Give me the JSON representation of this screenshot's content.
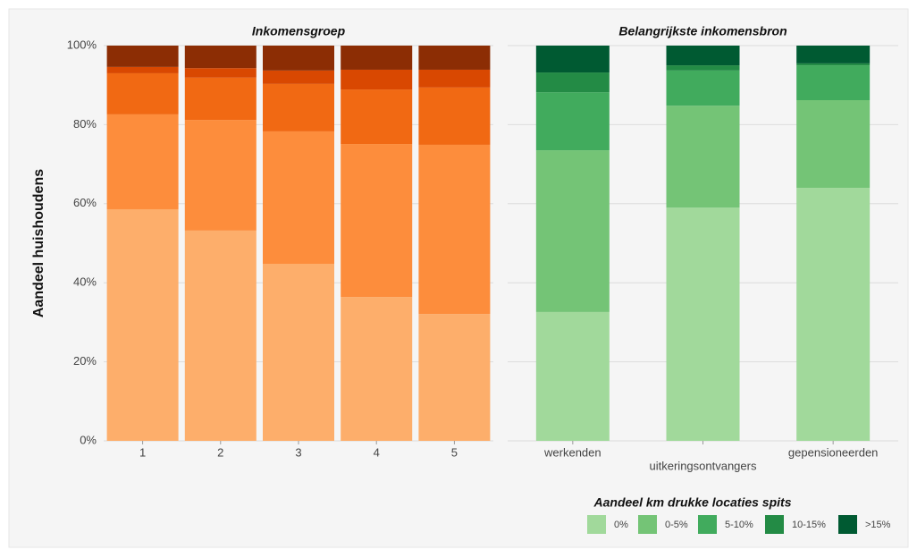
{
  "chart_data": [
    {
      "type": "stacked_bar",
      "title": "Inkomensgroep",
      "y_label": "Aandeel huishoudens",
      "categories": [
        "1",
        "2",
        "3",
        "4",
        "5"
      ],
      "series": [
        {
          "color": "#fdae6b",
          "values": [
            58.6,
            53.2,
            44.8,
            36.4,
            32.1
          ]
        },
        {
          "color": "#fd8d3c",
          "values": [
            24.0,
            28.0,
            33.5,
            38.7,
            42.8
          ]
        },
        {
          "color": "#f16913",
          "values": [
            10.4,
            10.7,
            12.0,
            13.8,
            14.5
          ]
        },
        {
          "color": "#d94801",
          "values": [
            1.6,
            2.4,
            3.4,
            5.0,
            4.5
          ]
        },
        {
          "color": "#8c2d04",
          "values": [
            5.4,
            5.7,
            6.3,
            6.1,
            6.1
          ]
        }
      ],
      "ylim": [
        0,
        100
      ],
      "yticks": [
        {
          "value": 0,
          "label": "0%"
        },
        {
          "value": 20,
          "label": "20%"
        },
        {
          "value": 40,
          "label": "40%"
        },
        {
          "value": 60,
          "label": "60%"
        },
        {
          "value": 80,
          "label": "80%"
        },
        {
          "value": 100,
          "label": "100%"
        }
      ],
      "grid": true
    },
    {
      "type": "stacked_bar",
      "title": "Belangrijkste inkomensbron",
      "legend_title": "Aandeel km drukke locaties spits",
      "categories": [
        "werkenden",
        "uitkeringsontvangers",
        "gepensioneerden"
      ],
      "series": [
        {
          "name": "0%",
          "color": "#a1d99b",
          "values": [
            32.6,
            59.0,
            64.0
          ]
        },
        {
          "name": "0-5%",
          "color": "#74c476",
          "values": [
            40.9,
            25.8,
            22.2
          ]
        },
        {
          "name": "5-10%",
          "color": "#41ab5d",
          "values": [
            14.7,
            8.9,
            8.8
          ]
        },
        {
          "name": "10-15%",
          "color": "#238b45",
          "values": [
            5.0,
            1.3,
            0.5
          ]
        },
        {
          "name": ">15%",
          "color": "#005a32",
          "values": [
            6.8,
            5.0,
            4.5
          ]
        }
      ],
      "ylim": [
        0,
        100
      ],
      "yticks": [
        0,
        20,
        40,
        60,
        80,
        100
      ],
      "grid": true,
      "legend": "bottom-right"
    }
  ]
}
